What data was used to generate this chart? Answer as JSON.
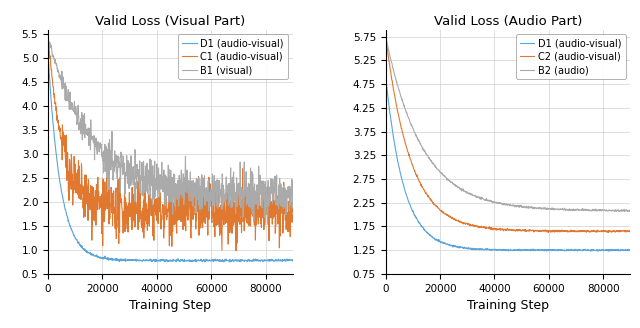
{
  "left_title": "Valid Loss (Visual Part)",
  "right_title": "Valid Loss (Audio Part)",
  "xlabel": "Training Step",
  "left_legend": [
    "D1 (audio-visual)",
    "C1 (audio-visual)",
    "B1 (visual)"
  ],
  "right_legend": [
    "D1 (audio-visual)",
    "C2 (audio-visual)",
    "B2 (audio)"
  ],
  "colors": {
    "blue": "#5aa5d9",
    "orange": "#e07830",
    "gray": "#aaaaaa"
  },
  "left_ylim": [
    0.5,
    5.6
  ],
  "right_ylim": [
    0.75,
    5.9
  ],
  "left_yticks": [
    0.5,
    1.0,
    1.5,
    2.0,
    2.5,
    3.0,
    3.5,
    4.0,
    4.5,
    5.0,
    5.5
  ],
  "right_yticks": [
    0.75,
    1.25,
    1.75,
    2.25,
    2.75,
    3.25,
    3.75,
    4.25,
    4.75,
    5.25,
    5.75
  ],
  "xticks": [
    0,
    20000,
    40000,
    60000,
    80000
  ],
  "xlim": [
    0,
    90000
  ],
  "n_steps": 900,
  "max_step": 90000,
  "seed": 42
}
